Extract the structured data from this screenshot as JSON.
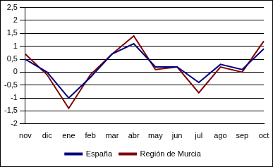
{
  "chart_data": {
    "type": "line",
    "categories": [
      "nov",
      "dic",
      "ene",
      "feb",
      "mar",
      "abr",
      "may",
      "jun",
      "jul",
      "ago",
      "sep",
      "oct"
    ],
    "series": [
      {
        "name": "España",
        "color": "#000080",
        "values": [
          0.5,
          0.0,
          -1.0,
          -0.2,
          0.7,
          1.1,
          0.2,
          0.2,
          -0.4,
          0.3,
          0.1,
          0.9
        ]
      },
      {
        "name": "Región de Murcia",
        "color": "#800000",
        "values": [
          0.7,
          -0.1,
          -1.4,
          -0.1,
          0.7,
          1.4,
          0.1,
          0.2,
          -0.8,
          0.2,
          0.0,
          1.2
        ]
      }
    ],
    "ylim": [
      -2,
      2.5
    ],
    "yticks": [
      -2,
      {
        "value": -1.5,
        "label": "-1,5"
      },
      -1,
      {
        "value": -0.5,
        "label": "-0,5"
      },
      0,
      {
        "value": 0.5,
        "label": "0,5"
      },
      1,
      {
        "value": 1.5,
        "label": "1,5"
      },
      2,
      {
        "value": 2.5,
        "label": "2,5"
      }
    ],
    "grid": true,
    "legend": "bottom"
  }
}
